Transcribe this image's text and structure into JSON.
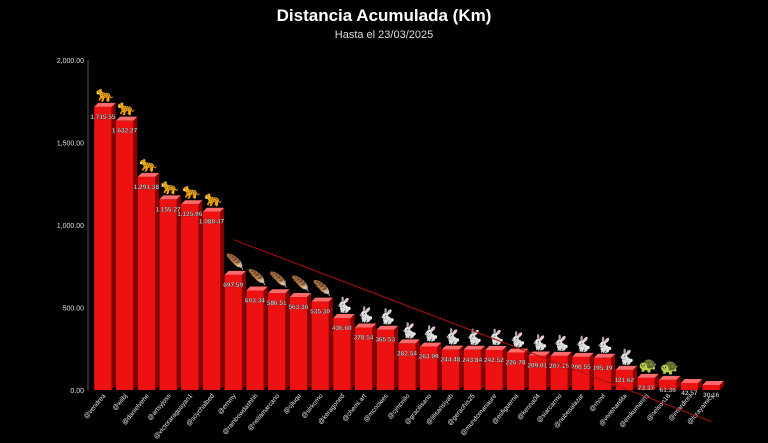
{
  "chart_data": {
    "type": "bar",
    "title": "Distancia Acumulada (Km)",
    "subtitle": "Hasta el 23/03/2025",
    "xlabel": "",
    "ylabel": "",
    "ylim": [
      0,
      2000
    ],
    "yticks": [
      "0.00",
      "500.00",
      "1,000.00",
      "1,500.00",
      "2,000.00"
    ],
    "ytick_values": [
      0,
      500,
      1000,
      1500,
      2000
    ],
    "grid": false,
    "legend": "none",
    "bar_color": "#ee1111",
    "trendline_color": "#b01010",
    "categories": [
      "@vendrea",
      "@wilbj",
      "@danielvehe",
      "@artsyjoss",
      "@victoraraguayan1",
      "@soychalbed",
      "@emmy",
      "@rainbowdashhh",
      "@neliamarcano",
      "@cjluqu",
      "@sirkomo",
      "@keragoned",
      "@chemi.art",
      "@mcookies",
      "@cjmorillo",
      "@gracilisano",
      "@lilisarislyah",
      "@geraohis25",
      "@mundomanaure",
      "@esfiguerna",
      "@kenna04",
      "@siarcarmo",
      "@nubesalazar",
      "@rnovl",
      "@viviehardita",
      "@emkumarinij",
      "@nelson18",
      "@imardioni",
      "@lorayamicy"
    ],
    "values": [
      1715.55,
      1632.27,
      1291.38,
      1155.27,
      1125.96,
      1080.47,
      697.59,
      603.34,
      586.51,
      563.36,
      535.3,
      436.6,
      378.54,
      365.53,
      282.54,
      263.09,
      244.48,
      243.84,
      242.52,
      226.78,
      209.01,
      207.16,
      200.55,
      195.19,
      121.62,
      73.37,
      61.36,
      42.57,
      30.16
    ],
    "value_labels": [
      "1,715.55",
      "1,632.27",
      "1,291.38",
      "1,155.27",
      "1,125.96",
      "1,080.47",
      "697.59",
      "603.34",
      "586.51",
      "563.36",
      "535.30",
      "436.60",
      "378.54",
      "365.53",
      "282.54",
      "263.09",
      "244.48",
      "243.84",
      "242.52",
      "226.78",
      "209.01",
      "207.16",
      "200.55",
      "195.19",
      "121.62",
      "73.37",
      "61.36",
      "42.57",
      "30.16"
    ],
    "markers": [
      "leopard",
      "leopard",
      "leopard",
      "leopard",
      "leopard",
      "leopard",
      "feather",
      "feather",
      "feather",
      "feather",
      "feather",
      "rabbit",
      "rabbit",
      "rabbit",
      "rabbit",
      "rabbit",
      "rabbit",
      "rabbit",
      "rabbit",
      "rabbit",
      "rabbit",
      "rabbit",
      "rabbit",
      "rabbit",
      "rabbit",
      "turtle",
      "turtle",
      "none",
      "none"
    ],
    "marker_icons": {
      "leopard": "🐆",
      "feather": "🪶",
      "rabbit": "🐇",
      "turtle": "🐢"
    }
  }
}
